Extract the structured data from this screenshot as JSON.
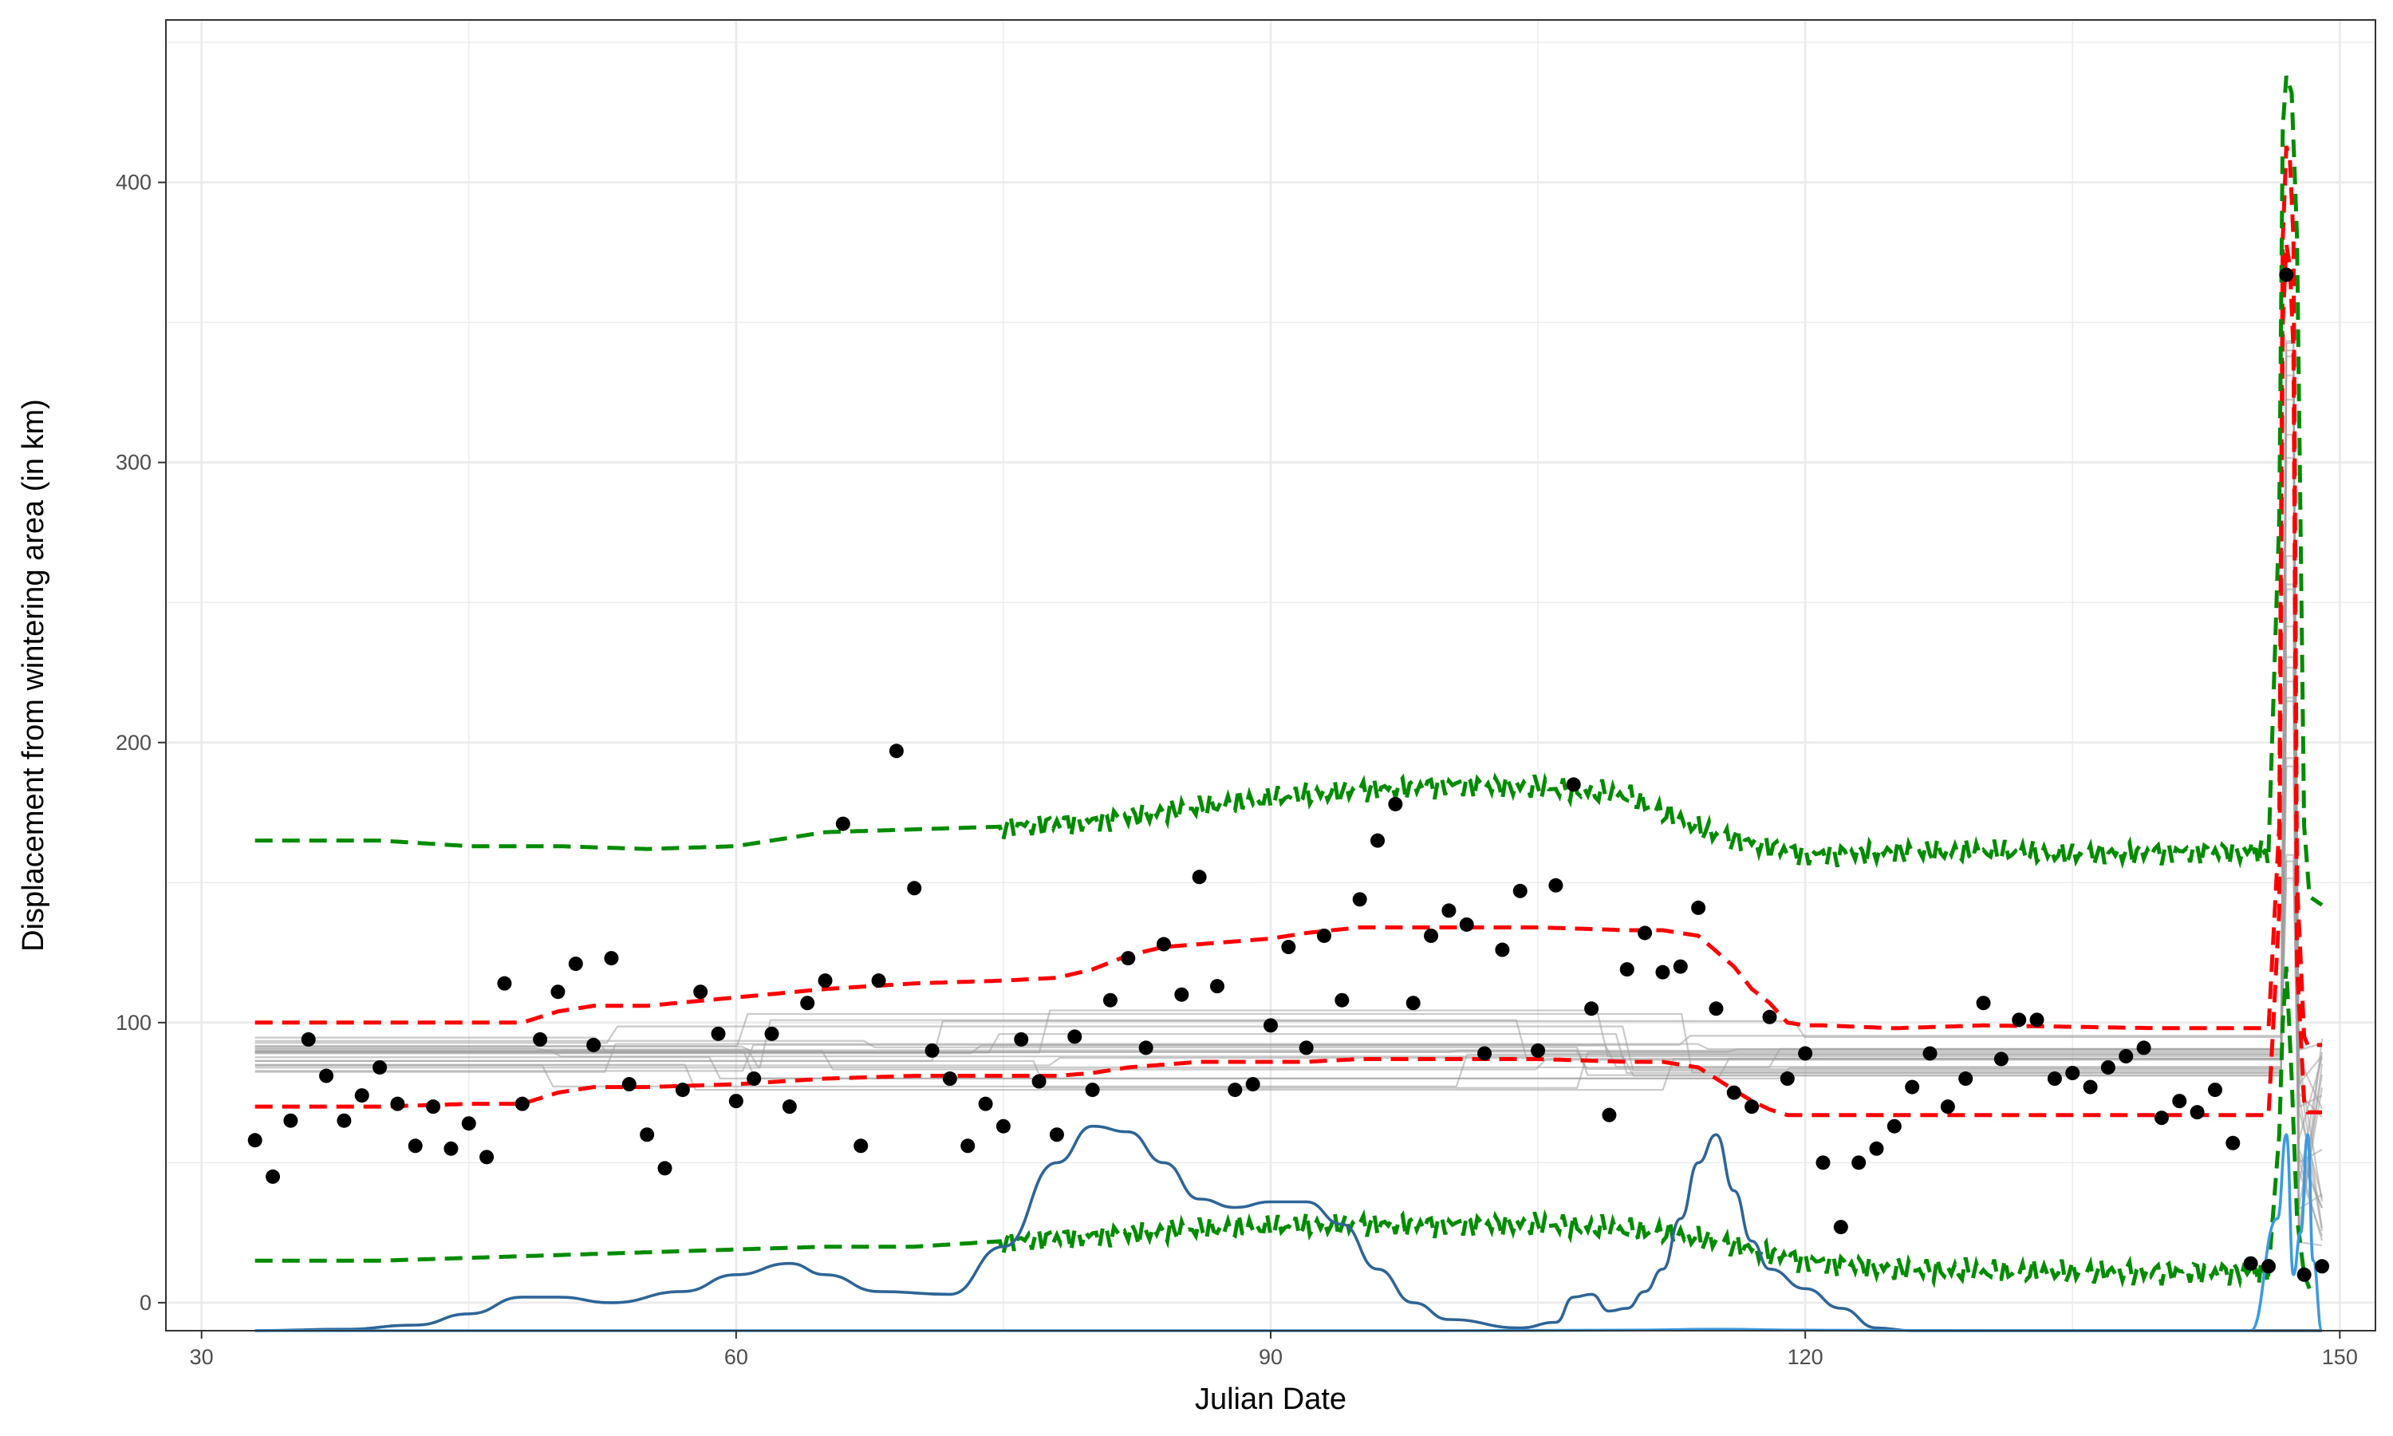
{
  "chart_data": {
    "type": "scatter",
    "xlabel": "Julian Date",
    "ylabel": "Displacement from wintering area (in km)",
    "xlim": [
      28,
      152
    ],
    "ylim": [
      -10,
      458
    ],
    "x_ticks": [
      30,
      60,
      90,
      120,
      150
    ],
    "y_ticks": [
      0,
      100,
      200,
      300,
      400
    ],
    "grid": true,
    "legend": "none",
    "colors": {
      "points": "#000000",
      "gray_lines": "#9e9e9e",
      "red_band": "#ff0000",
      "green_band": "#008b00",
      "density_dark": "#2e6596",
      "density_light": "#3b9ae1",
      "grid": "#ebebeb",
      "panel_border": "#333333"
    },
    "series": [
      {
        "kind": "points",
        "x": [
          33,
          34,
          35,
          36,
          37,
          38,
          39,
          40,
          41,
          42,
          43,
          44,
          45,
          46,
          47,
          48,
          49,
          50,
          51,
          52,
          53,
          54,
          55,
          56,
          57,
          58,
          59,
          60,
          61,
          62,
          63,
          64,
          65,
          66,
          67,
          68,
          69,
          70,
          71,
          72,
          73,
          74,
          75,
          76,
          77,
          78,
          79,
          80,
          81,
          82,
          83,
          84,
          85,
          86,
          87,
          88,
          89,
          90,
          91,
          92,
          93,
          94,
          95,
          96,
          97,
          98,
          99,
          100,
          101,
          102,
          103,
          104,
          105,
          106,
          107,
          108,
          109,
          110,
          111,
          112,
          113,
          114,
          115,
          116,
          117,
          118,
          119,
          120,
          121,
          122,
          123,
          124,
          125,
          126,
          127,
          128,
          129,
          130,
          131,
          132,
          133,
          134,
          135,
          136,
          137,
          138,
          139,
          140,
          141,
          142,
          143,
          144,
          145,
          146,
          147,
          148,
          149
        ],
        "y": [
          58,
          45,
          65,
          94,
          81,
          65,
          74,
          84,
          71,
          56,
          70,
          55,
          64,
          52,
          114,
          71,
          94,
          111,
          121,
          92,
          123,
          78,
          60,
          48,
          76,
          111,
          96,
          72,
          80,
          96,
          70,
          107,
          115,
          171,
          56,
          115,
          197,
          148,
          90,
          80,
          56,
          71,
          63,
          94,
          79,
          60,
          95,
          76,
          108,
          123,
          91,
          128,
          110,
          152,
          113,
          76,
          78,
          99,
          127,
          91,
          131,
          108,
          144,
          165,
          178,
          107,
          131,
          140,
          135,
          89,
          126,
          147,
          90,
          149,
          185,
          105,
          67,
          119,
          132,
          118,
          120,
          141,
          105,
          75,
          70,
          102,
          80,
          89,
          50,
          27,
          50,
          55,
          63,
          77,
          89,
          70,
          80,
          107,
          87,
          101,
          101,
          80,
          82,
          77,
          84,
          88,
          91,
          66,
          72,
          68,
          76,
          57,
          14,
          13,
          367,
          10,
          13
        ]
      },
      {
        "kind": "line",
        "style": "dashed",
        "x": [
          33,
          40,
          45,
          48,
          50,
          52,
          55,
          60,
          65,
          70,
          75,
          78,
          80,
          82,
          84,
          86,
          88,
          90,
          92,
          95,
          100,
          105,
          110,
          112,
          114,
          116,
          117,
          118,
          119,
          120,
          121,
          125,
          130,
          140,
          146,
          146.6,
          146.8,
          147,
          147.2,
          147.4,
          147.6,
          148,
          148.2,
          149
        ],
        "y": [
          100,
          100,
          100,
          100,
          104,
          106,
          106,
          109,
          112,
          114,
          115,
          116,
          119,
          124,
          127,
          128,
          129,
          130,
          132,
          134,
          134,
          134,
          133,
          133,
          131,
          120,
          112,
          107,
          100,
          99,
          99,
          98,
          99,
          98,
          98,
          170,
          380,
          413,
          408,
          380,
          150,
          95,
          92,
          92
        ]
      },
      {
        "kind": "line",
        "style": "dashed",
        "x": [
          33,
          40,
          45,
          48,
          50,
          52,
          55,
          60,
          65,
          70,
          75,
          78,
          80,
          82,
          84,
          86,
          88,
          90,
          92,
          95,
          100,
          105,
          110,
          112,
          114,
          116,
          117,
          118,
          119,
          120,
          121,
          125,
          130,
          140,
          146,
          146.6,
          146.8,
          147,
          147.2,
          147.4,
          147.6,
          148,
          148.2,
          149
        ],
        "y": [
          70,
          70,
          71,
          71,
          75,
          77,
          77,
          78,
          80,
          81,
          81,
          81,
          82,
          84,
          85,
          86,
          86,
          86,
          86,
          87,
          87,
          87,
          86,
          86,
          84,
          76,
          72,
          69,
          67,
          67,
          67,
          67,
          67,
          67,
          67,
          140,
          350,
          378,
          370,
          340,
          120,
          72,
          68,
          68
        ]
      },
      {
        "kind": "line",
        "style": "dashed",
        "x": [
          33,
          40,
          45,
          50,
          55,
          60,
          63,
          65,
          70,
          75,
          80,
          85,
          90,
          95,
          100,
          105,
          110,
          112,
          115,
          120,
          125,
          130,
          135,
          140,
          146,
          146.6,
          146.8,
          147,
          147.3,
          147.6,
          148,
          148.3,
          149
        ],
        "y": [
          165,
          165,
          163,
          163,
          162,
          163,
          166,
          168,
          169,
          170,
          172,
          176,
          180,
          183,
          185,
          184,
          181,
          175,
          167,
          160,
          161,
          161,
          160,
          161,
          161,
          280,
          420,
          438,
          432,
          380,
          170,
          145,
          142
        ]
      },
      {
        "kind": "line",
        "style": "dashed",
        "x": [
          33,
          40,
          45,
          50,
          55,
          60,
          65,
          70,
          75,
          80,
          85,
          90,
          95,
          100,
          105,
          110,
          112,
          115,
          120,
          125,
          130,
          135,
          140,
          146,
          146.6,
          146.8,
          147,
          147.3,
          147.6,
          148,
          148.3
        ],
        "y": [
          15,
          15,
          16,
          17,
          18,
          19,
          20,
          20,
          22,
          24,
          26,
          27,
          28,
          28,
          28,
          26,
          25,
          22,
          15,
          12,
          11,
          11,
          11,
          11,
          60,
          100,
          120,
          80,
          30,
          10,
          5
        ]
      },
      {
        "kind": "density",
        "x": [
          33,
          38,
          42,
          45,
          48,
          50,
          53,
          57,
          60,
          63,
          65,
          68,
          72,
          75,
          78,
          80,
          82,
          84,
          86,
          88,
          90,
          92,
          94,
          96,
          98,
          100,
          104,
          106,
          107,
          108,
          109,
          110,
          111,
          112,
          113,
          114,
          115,
          116,
          117,
          118,
          120,
          122,
          124,
          126,
          130,
          140,
          149
        ],
        "y": [
          0,
          0.5,
          2,
          6,
          12,
          12,
          10,
          14,
          20,
          24,
          20,
          14,
          13,
          30,
          60,
          73,
          71,
          60,
          47,
          44,
          46,
          46,
          38,
          22,
          10,
          4,
          1,
          3,
          12,
          13,
          7,
          8,
          14,
          22,
          40,
          60,
          70,
          50,
          32,
          22,
          15,
          8,
          1,
          0,
          0,
          0,
          0
        ]
      },
      {
        "kind": "density",
        "x": [
          33,
          100,
          110,
          115,
          120,
          130,
          145,
          146.5,
          147,
          147.4,
          147.8,
          148.2,
          148.5,
          149
        ],
        "y": [
          0,
          0,
          0.2,
          0.5,
          0.2,
          0,
          0,
          40,
          70,
          20,
          35,
          70,
          25,
          0
        ]
      }
    ]
  }
}
